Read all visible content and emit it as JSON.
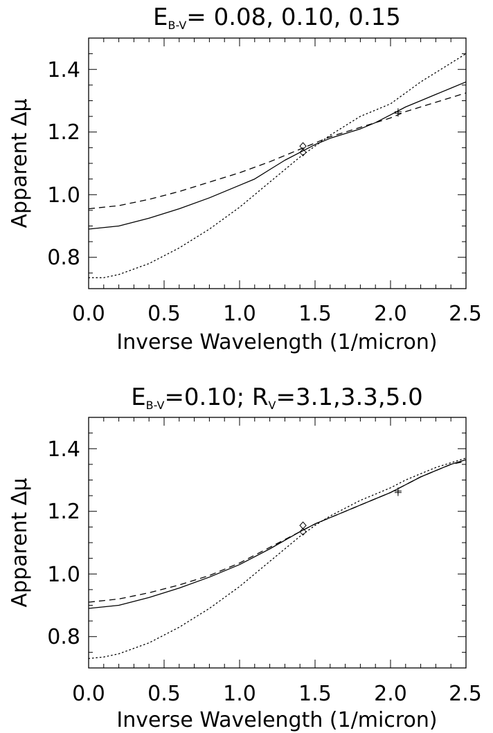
{
  "chart_data": [
    {
      "type": "line",
      "title": "E_B-V= 0.08, 0.10, 0.15",
      "title_main": "E",
      "title_sub": "B-V",
      "title_rest": "= 0.08, 0.10, 0.15",
      "xlabel": "Inverse Wavelength (1/micron)",
      "ylabel": "Apparent Δμ",
      "xlim": [
        0,
        2.5
      ],
      "ylim": [
        0.7,
        1.5
      ],
      "x_ticks": [
        "0.0",
        "0.5",
        "1.0",
        "1.5",
        "2.0",
        "2.5"
      ],
      "y_ticks": [
        "0.8",
        "1.0",
        "1.2",
        "1.4"
      ],
      "grid": false,
      "series": [
        {
          "style": "solid",
          "x": [
            0,
            0.2,
            0.4,
            0.6,
            0.8,
            1.0,
            1.1,
            1.2,
            1.3,
            1.4,
            1.5,
            1.6,
            1.7,
            1.8,
            1.9,
            2.0,
            2.1,
            2.2,
            2.3,
            2.4,
            2.5
          ],
          "values": [
            0.89,
            0.9,
            0.925,
            0.955,
            0.99,
            1.03,
            1.05,
            1.08,
            1.11,
            1.135,
            1.16,
            1.18,
            1.195,
            1.21,
            1.23,
            1.255,
            1.28,
            1.3,
            1.32,
            1.34,
            1.36
          ]
        },
        {
          "style": "dashed",
          "x": [
            0,
            0.2,
            0.4,
            0.6,
            0.8,
            1.0,
            1.2,
            1.4,
            1.5,
            1.6,
            1.7,
            1.8,
            1.9,
            2.0,
            2.1,
            2.2,
            2.3,
            2.4,
            2.5
          ],
          "values": [
            0.955,
            0.965,
            0.985,
            1.01,
            1.04,
            1.07,
            1.105,
            1.145,
            1.165,
            1.185,
            1.2,
            1.215,
            1.23,
            1.245,
            1.265,
            1.28,
            1.295,
            1.31,
            1.325
          ]
        },
        {
          "style": "dotted",
          "x": [
            0,
            0.1,
            0.2,
            0.4,
            0.6,
            0.8,
            1.0,
            1.2,
            1.4,
            1.5,
            1.6,
            1.7,
            1.8,
            1.9,
            2.0,
            2.1,
            2.2,
            2.3,
            2.4,
            2.5
          ],
          "values": [
            0.735,
            0.735,
            0.745,
            0.78,
            0.83,
            0.89,
            0.96,
            1.04,
            1.12,
            1.155,
            1.19,
            1.22,
            1.25,
            1.27,
            1.29,
            1.325,
            1.36,
            1.39,
            1.42,
            1.45
          ]
        }
      ],
      "markers": [
        {
          "symbol": "diamond",
          "x": 1.42,
          "y": 1.155
        },
        {
          "symbol": "diamond",
          "x": 1.42,
          "y": 1.135
        },
        {
          "symbol": "plus",
          "x": 2.05,
          "y": 1.265
        },
        {
          "symbol": "plus",
          "x": 2.05,
          "y": 1.26
        }
      ]
    },
    {
      "type": "line",
      "title": "E_B-V=0.10; R_V=3.1,3.3,5.0",
      "title_main": "E",
      "title_sub": "B-V",
      "title_mid": "=0.10; R",
      "title_sub2": "V",
      "title_rest": "=3.1,3.3,5.0",
      "xlabel": "Inverse Wavelength (1/micron)",
      "ylabel": "Apparent Δμ",
      "xlim": [
        0,
        2.5
      ],
      "ylim": [
        0.7,
        1.5
      ],
      "x_ticks": [
        "0.0",
        "0.5",
        "1.0",
        "1.5",
        "2.0",
        "2.5"
      ],
      "y_ticks": [
        "0.8",
        "1.0",
        "1.2",
        "1.4"
      ],
      "grid": false,
      "series": [
        {
          "style": "solid",
          "x": [
            0,
            0.2,
            0.4,
            0.6,
            0.8,
            1.0,
            1.2,
            1.4,
            1.5,
            1.6,
            1.7,
            1.8,
            1.9,
            2.0,
            2.1,
            2.2,
            2.3,
            2.4,
            2.5
          ],
          "values": [
            0.89,
            0.9,
            0.925,
            0.955,
            0.99,
            1.03,
            1.08,
            1.135,
            1.16,
            1.18,
            1.2,
            1.22,
            1.24,
            1.26,
            1.285,
            1.31,
            1.33,
            1.35,
            1.365
          ]
        },
        {
          "style": "dashed",
          "x": [
            0,
            0.2,
            0.4,
            0.6,
            0.8,
            1.0,
            1.2,
            1.4,
            1.5,
            1.6,
            1.7,
            1.8,
            1.9,
            2.0,
            2.1,
            2.2,
            2.3,
            2.4,
            2.5
          ],
          "values": [
            0.91,
            0.92,
            0.94,
            0.965,
            0.995,
            1.035,
            1.085,
            1.135,
            1.16,
            1.18,
            1.2,
            1.22,
            1.24,
            1.26,
            1.285,
            1.31,
            1.33,
            1.35,
            1.36
          ]
        },
        {
          "style": "dotted",
          "x": [
            0,
            0.1,
            0.2,
            0.4,
            0.6,
            0.8,
            1.0,
            1.2,
            1.4,
            1.5,
            1.6,
            1.7,
            1.8,
            1.9,
            2.0,
            2.1,
            2.2,
            2.3,
            2.4,
            2.5
          ],
          "values": [
            0.73,
            0.735,
            0.745,
            0.78,
            0.83,
            0.89,
            0.96,
            1.04,
            1.12,
            1.155,
            1.185,
            1.21,
            1.235,
            1.255,
            1.275,
            1.3,
            1.32,
            1.34,
            1.355,
            1.37
          ]
        }
      ],
      "markers": [
        {
          "symbol": "diamond",
          "x": 1.42,
          "y": 1.155
        },
        {
          "symbol": "diamond",
          "x": 1.42,
          "y": 1.135
        },
        {
          "symbol": "plus",
          "x": 2.05,
          "y": 1.265
        },
        {
          "symbol": "plus",
          "x": 2.05,
          "y": 1.26
        }
      ]
    }
  ]
}
